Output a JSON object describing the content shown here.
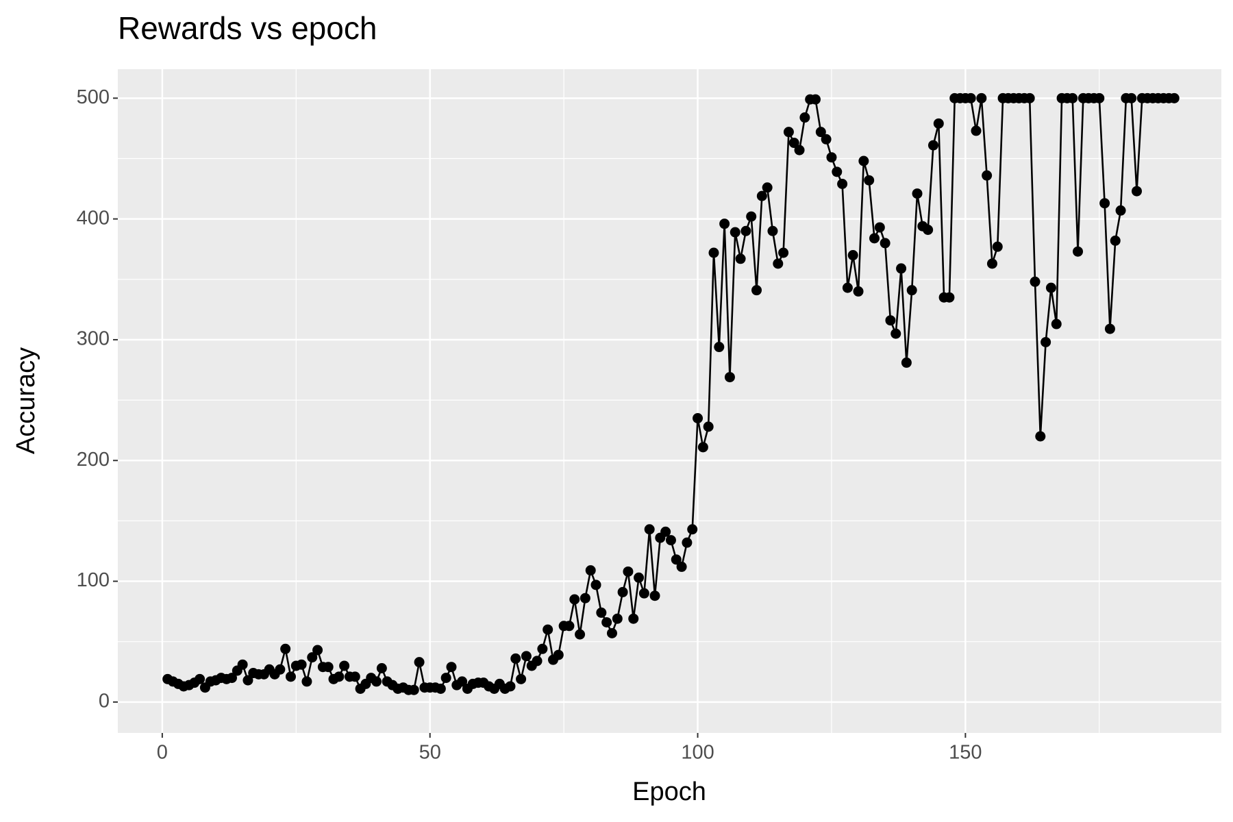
{
  "chart_data": {
    "type": "line",
    "title": "Rewards vs epoch",
    "x_label": "Epoch",
    "y_label": "Accuracy",
    "x": [
      1,
      2,
      3,
      4,
      5,
      6,
      7,
      8,
      9,
      10,
      11,
      12,
      13,
      14,
      15,
      16,
      17,
      18,
      19,
      20,
      21,
      22,
      23,
      24,
      25,
      26,
      27,
      28,
      29,
      30,
      31,
      32,
      33,
      34,
      35,
      36,
      37,
      38,
      39,
      40,
      41,
      42,
      43,
      44,
      45,
      46,
      47,
      48,
      49,
      50,
      51,
      52,
      53,
      54,
      55,
      56,
      57,
      58,
      59,
      60,
      61,
      62,
      63,
      64,
      65,
      66,
      67,
      68,
      69,
      70,
      71,
      72,
      73,
      74,
      75,
      76,
      77,
      78,
      79,
      80,
      81,
      82,
      83,
      84,
      85,
      86,
      87,
      88,
      89,
      90,
      91,
      92,
      93,
      94,
      95,
      96,
      97,
      98,
      99,
      100,
      101,
      102,
      103,
      104,
      105,
      106,
      107,
      108,
      109,
      110,
      111,
      112,
      113,
      114,
      115,
      116,
      117,
      118,
      119,
      120,
      121,
      122,
      123,
      124,
      125,
      126,
      127,
      128,
      129,
      130,
      131,
      132,
      133,
      134,
      135,
      136,
      137,
      138,
      139,
      140,
      141,
      142,
      143,
      144,
      145,
      146,
      147,
      148,
      149,
      150,
      151,
      152,
      153,
      154,
      155,
      156,
      157,
      158,
      159,
      160,
      161,
      162,
      163,
      164,
      165,
      166,
      167,
      168,
      169,
      170,
      171,
      172,
      173,
      174,
      175,
      176,
      177,
      178,
      179,
      180,
      181,
      182,
      183,
      184,
      185,
      186,
      187,
      188,
      189
    ],
    "series": [
      {
        "name": "Accuracy",
        "color": "#000000",
        "values": [
          19,
          17,
          15,
          13,
          14,
          16,
          19,
          12,
          17,
          18,
          20,
          19,
          20,
          26,
          31,
          18,
          24,
          23,
          23,
          27,
          23,
          27,
          44,
          21,
          30,
          31,
          17,
          37,
          43,
          29,
          29,
          19,
          21,
          30,
          21,
          21,
          11,
          15,
          20,
          17,
          28,
          17,
          14,
          11,
          12,
          10,
          10,
          33,
          12,
          12,
          12,
          11,
          20,
          29,
          14,
          17,
          11,
          15,
          16,
          16,
          13,
          11,
          15,
          11,
          13,
          36,
          19,
          38,
          30,
          34,
          44,
          60,
          35,
          39,
          63,
          63,
          85,
          56,
          86,
          109,
          97,
          74,
          66,
          57,
          69,
          91,
          108,
          69,
          103,
          90,
          143,
          88,
          136,
          141,
          134,
          118,
          112,
          132,
          143,
          235,
          211,
          228,
          372,
          294,
          396,
          269,
          389,
          367,
          390,
          402,
          341,
          419,
          426,
          390,
          363,
          372,
          472,
          463,
          457,
          484,
          499,
          499,
          472,
          466,
          451,
          439,
          429,
          343,
          370,
          340,
          448,
          432,
          384,
          393,
          380,
          316,
          305,
          359,
          281,
          341,
          421,
          394,
          391,
          461,
          479,
          335,
          335,
          500,
          500,
          500,
          500,
          473,
          500,
          436,
          363,
          377,
          500,
          500,
          500,
          500,
          500,
          500,
          348,
          220,
          298,
          343,
          313,
          500,
          500,
          500,
          373,
          500,
          500,
          500,
          500,
          413,
          309,
          382,
          407,
          500,
          500,
          423,
          500,
          500,
          500,
          500,
          500,
          500,
          500
        ]
      }
    ],
    "xlim": [
      -8.3,
      197.8
    ],
    "ylim": [
      -25.6,
      524
    ],
    "xticks": [
      0,
      50,
      100,
      150
    ],
    "yticks": [
      0,
      100,
      200,
      300,
      400,
      500
    ],
    "x_minor_grid": [
      25,
      75,
      125,
      175
    ],
    "y_minor_grid": [
      50,
      150,
      250,
      350,
      450
    ],
    "grid": true,
    "markers": true
  }
}
